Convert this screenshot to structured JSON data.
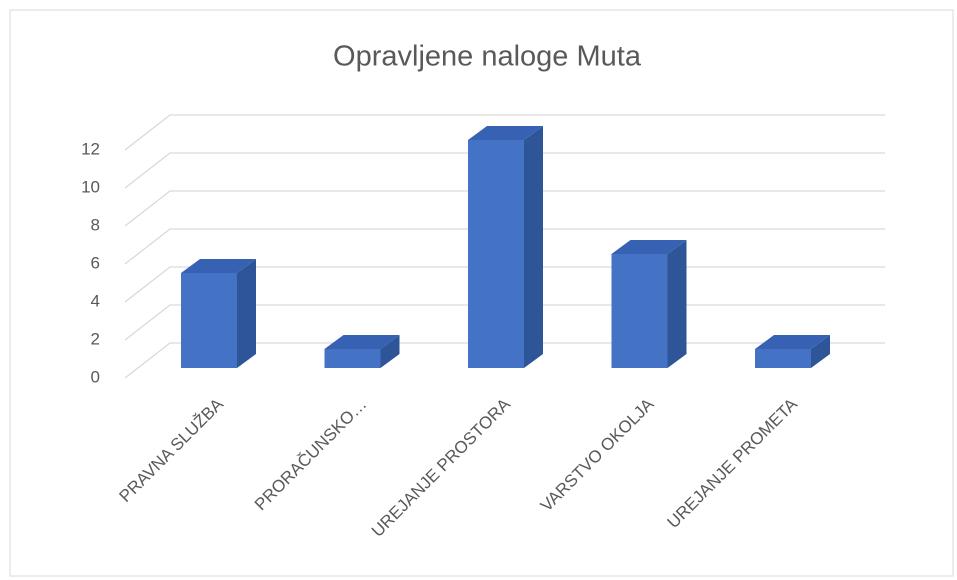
{
  "chart_data": {
    "type": "bar",
    "title": "Opravljene naloge Muta",
    "categories": [
      "PRAVNA SLUŽBA",
      "PRORAČUNSKO…",
      "UREJANJE PROSTORA",
      "VARSTVO OKOLJA",
      "UREJANJE PROMETA"
    ],
    "values": [
      5,
      1,
      12,
      6,
      1
    ],
    "color": "#4472c4",
    "ylim": [
      0,
      12
    ],
    "yticks": [
      0,
      2,
      4,
      6,
      8,
      10,
      12
    ],
    "grid": true
  }
}
